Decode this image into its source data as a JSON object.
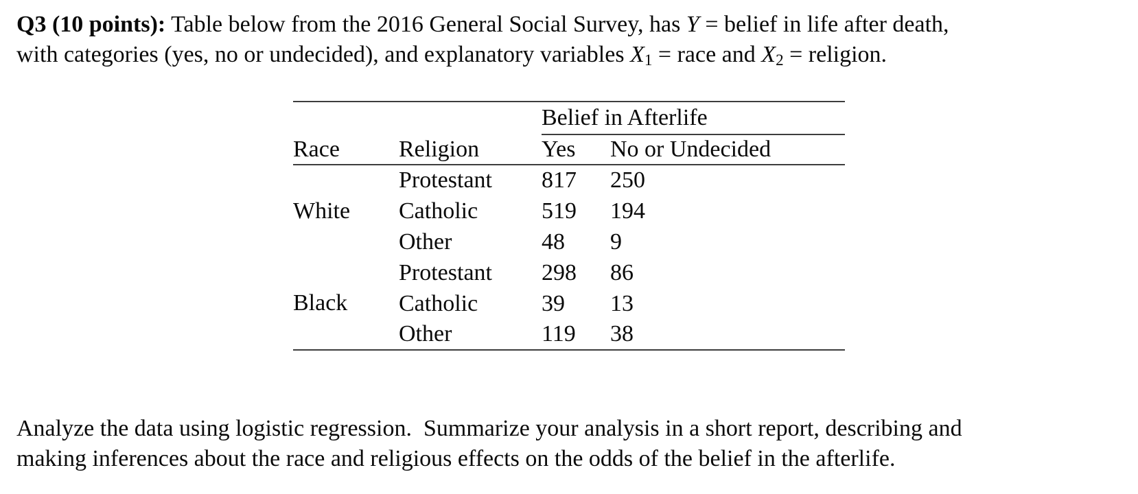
{
  "page": {
    "background_color": "#ffffff",
    "text_color": "#0a0a0a",
    "rule_color": "#3d3d3d"
  },
  "intro": {
    "label": "Q3 (10 points):",
    "line1": {
      "a": " Table below from the 2016 General Social Survey, has ",
      "var_y": "Y",
      "b": " = belief in life after death,"
    },
    "line2": {
      "a": "with categories (yes, no or undecided), and explanatory variables ",
      "var_x": "X",
      "sub1": "1",
      "b": " = race and ",
      "var_x2": "X",
      "sub2": "2",
      "c": " = religion."
    }
  },
  "table": {
    "spanning_header": "Belief in Afterlife",
    "headers": {
      "race": "Race",
      "religion": "Religion",
      "yes": "Yes",
      "no_undecided": "No or Undecided"
    },
    "groups": [
      {
        "race": "White",
        "rows": [
          {
            "religion": "Protestant",
            "yes": "817",
            "no_undecided": "250"
          },
          {
            "religion": "Catholic",
            "yes": "519",
            "no_undecided": "194"
          },
          {
            "religion": "Other",
            "yes": "48",
            "no_undecided": "9"
          }
        ]
      },
      {
        "race": "Black",
        "rows": [
          {
            "religion": "Protestant",
            "yes": "298",
            "no_undecided": "86"
          },
          {
            "religion": "Catholic",
            "yes": "39",
            "no_undecided": "13"
          },
          {
            "religion": "Other",
            "yes": "119",
            "no_undecided": "38"
          }
        ]
      }
    ]
  },
  "closing": {
    "line1": "Analyze the data using logistic regression.  Summarize your analysis in a short report, describing and",
    "line2": "making inferences about the race and religious effects on the odds of the belief in the afterlife."
  }
}
